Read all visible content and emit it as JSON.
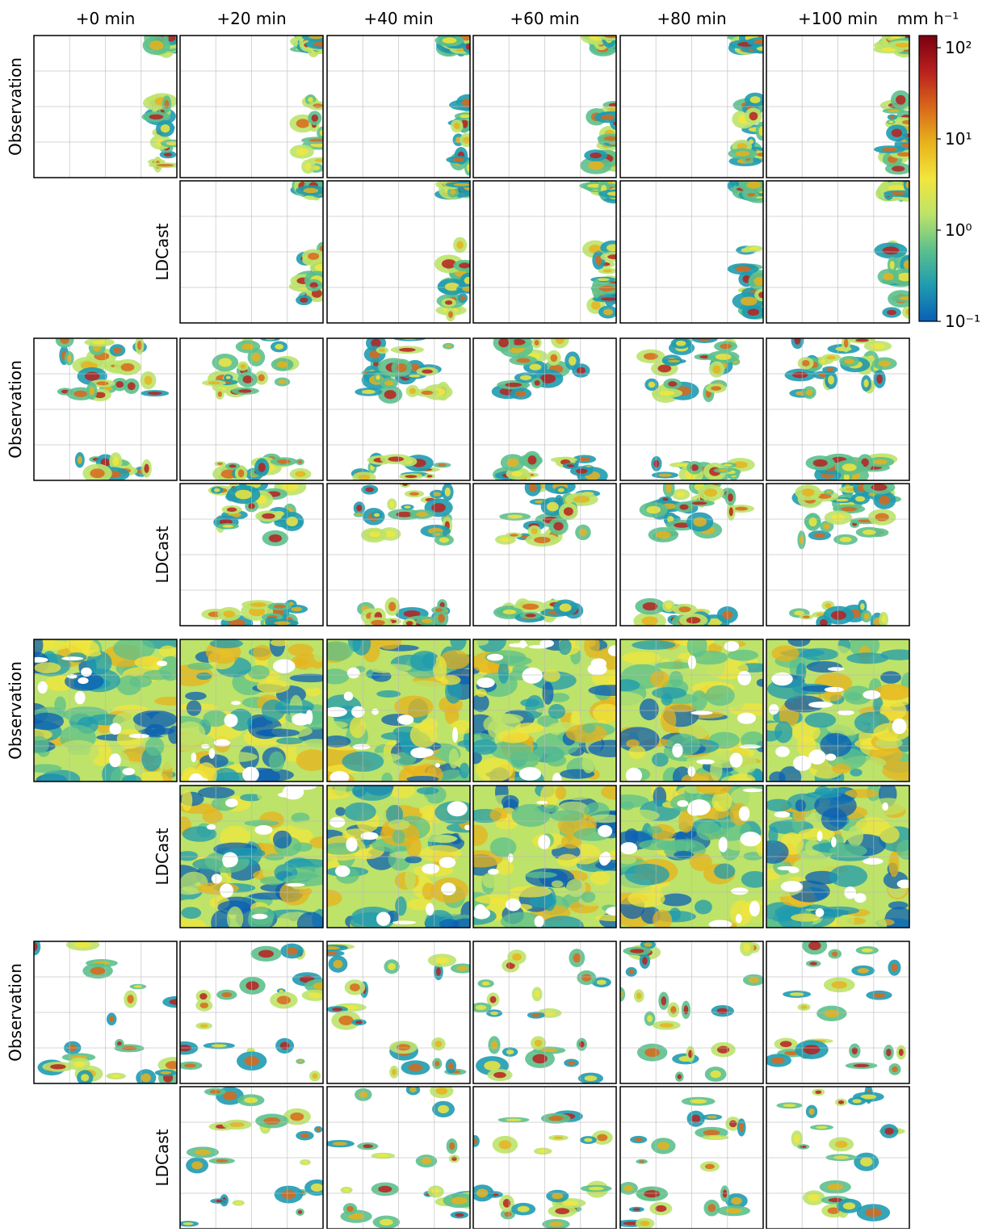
{
  "chart_data": {
    "type": "image-grid",
    "columns": [
      "+0 min",
      "+20 min",
      "+40 min",
      "+60 min",
      "+80 min",
      "+100 min"
    ],
    "row_labels": [
      "Observation",
      "LDCast",
      "Observation",
      "LDCast",
      "Observation",
      "LDCast",
      "Observation",
      "LDCast"
    ],
    "colorbar": {
      "label": "mm h⁻¹",
      "scale": "log",
      "ylim": [
        0.1,
        136
      ],
      "yticks": [
        {
          "value": 0.1,
          "label": "10⁻¹"
        },
        {
          "value": 1,
          "label": "10⁰"
        },
        {
          "value": 10,
          "label": "10¹"
        },
        {
          "value": 100,
          "label": "10²"
        }
      ],
      "colormap": [
        "#0a5fb4",
        "#1f9bb0",
        "#5cc08c",
        "#bde36a",
        "#f2e63c",
        "#e8b21c",
        "#d9671a",
        "#b8201e",
        "#7a0010"
      ]
    }
  }
}
